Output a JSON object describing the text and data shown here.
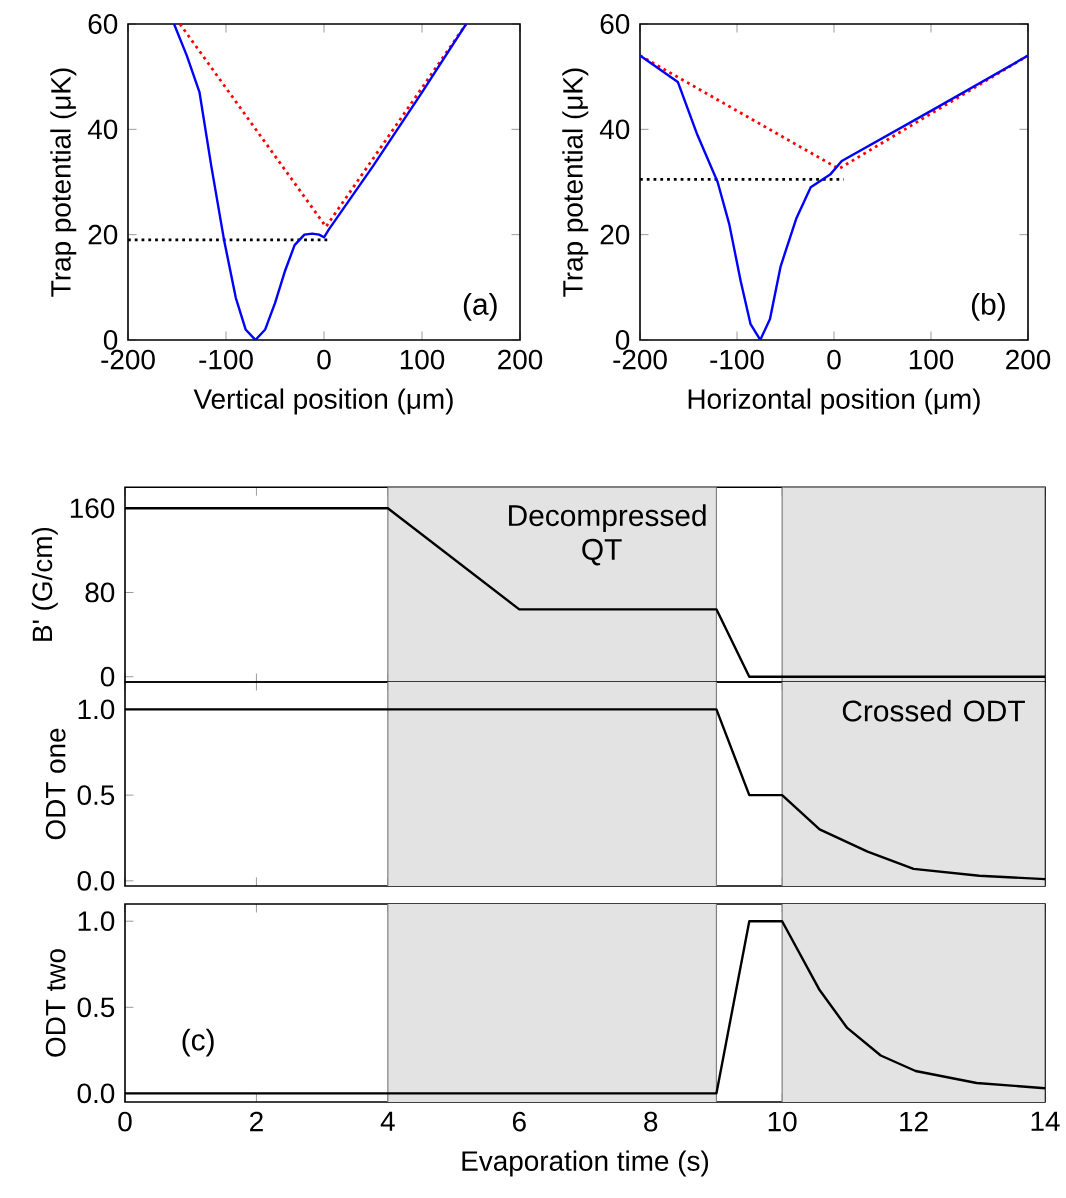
{
  "chart_data": [
    {
      "type": "line",
      "xlabel": "Vertical position (μm)",
      "ylabel": "Trap potential (μK)",
      "xlim": [
        -200,
        200
      ],
      "ylim": [
        0,
        60
      ],
      "xticks": [
        -200,
        -100,
        0,
        100,
        200
      ],
      "yticks": [
        0,
        20,
        40,
        60
      ],
      "annotations": [
        "(a)"
      ],
      "series": [
        {
          "color": "#ff0000",
          "line_style": "dotted",
          "x": [
            -147,
            2,
            145
          ],
          "values": [
            60,
            21.5,
            60
          ]
        },
        {
          "color": "#000000",
          "line_style": "dotted",
          "x": [
            -200,
            5
          ],
          "values": [
            19,
            19
          ]
        },
        {
          "color": "#0000ff",
          "line_style": "solid",
          "x": [
            -153,
            -140,
            -127,
            -115,
            -102,
            -90,
            -80,
            -70,
            -60,
            -50,
            -40,
            -30,
            -20,
            -12,
            -5,
            0,
            5,
            50,
            100,
            145
          ],
          "values": [
            60,
            54,
            47,
            33,
            19,
            8,
            2,
            0,
            2,
            7,
            13,
            18,
            20,
            20.2,
            20,
            19.5,
            21,
            33,
            47,
            60
          ]
        }
      ]
    },
    {
      "type": "line",
      "xlabel": "Horizontal position (μm)",
      "ylabel": "Trap potential (μK)",
      "xlim": [
        -200,
        200
      ],
      "ylim": [
        0,
        60
      ],
      "xticks": [
        -200,
        -100,
        0,
        100,
        200
      ],
      "yticks": [
        0,
        20,
        40,
        60
      ],
      "annotations": [
        "(b)"
      ],
      "series": [
        {
          "color": "#ff0000",
          "line_style": "dotted",
          "x": [
            -200,
            5,
            200
          ],
          "values": [
            54,
            32.5,
            54
          ]
        },
        {
          "color": "#000000",
          "line_style": "dotted",
          "x": [
            -200,
            10
          ],
          "values": [
            30.5,
            30.5
          ]
        },
        {
          "color": "#0000ff",
          "line_style": "solid",
          "x": [
            -200,
            -161,
            -141,
            -120,
            -108,
            -96,
            -86,
            -76,
            -66,
            -55,
            -39,
            -24,
            -4,
            8,
            100,
            200
          ],
          "values": [
            54,
            49,
            39,
            30,
            22,
            11,
            3,
            0,
            4,
            14,
            23,
            29,
            31.4,
            34,
            43.5,
            54
          ]
        }
      ]
    },
    {
      "type": "line",
      "ylabel": "B' (G/cm)",
      "xlim": [
        0,
        14
      ],
      "ylim": [
        -5,
        180
      ],
      "xticks": [
        0,
        2,
        4,
        6,
        8,
        10,
        12,
        14
      ],
      "yticks": [
        0,
        80,
        160
      ],
      "tick_labels": "y",
      "bands": [
        {
          "axis": "x",
          "from": 4,
          "to": 9,
          "label": "Decompressed QT",
          "color": "#e3e3e3"
        },
        {
          "axis": "x",
          "from": 10,
          "to": 14,
          "color": "#e3e3e3"
        }
      ],
      "series": [
        {
          "color": "#000000",
          "line_style": "solid",
          "x": [
            0,
            4,
            6,
            9,
            9.5,
            14
          ],
          "values": [
            160,
            160,
            64,
            64,
            0,
            0
          ]
        }
      ]
    },
    {
      "type": "line",
      "ylabel": "ODT one",
      "xlim": [
        0,
        14
      ],
      "ylim": [
        -0.03,
        1.16
      ],
      "xticks": [
        0,
        2,
        4,
        6,
        8,
        10,
        12,
        14
      ],
      "yticks": [
        {
          "value": 0,
          "label": "0.0"
        },
        {
          "value": 0.5,
          "label": "0.5"
        },
        {
          "value": 1,
          "label": "1.0"
        }
      ],
      "tick_labels": "y",
      "bands": [
        {
          "axis": "x",
          "from": 4,
          "to": 9,
          "color": "#e3e3e3"
        },
        {
          "axis": "x",
          "from": 10,
          "to": 14,
          "label": "Crossed ODT",
          "color": "#e3e3e3"
        }
      ],
      "series": [
        {
          "color": "#000000",
          "line_style": "solid",
          "x": [
            0,
            9,
            9.5,
            10,
            10.57,
            11.3,
            12,
            13,
            14
          ],
          "values": [
            1,
            1,
            0.5,
            0.5,
            0.3,
            0.17,
            0.07,
            0.03,
            0.01
          ]
        }
      ]
    },
    {
      "type": "line",
      "xlabel": "Evaporation time (s)",
      "ylabel": "ODT two",
      "xlim": [
        0,
        14
      ],
      "ylim": [
        -0.05,
        1.1
      ],
      "xticks": [
        0,
        2,
        4,
        6,
        8,
        10,
        12,
        14
      ],
      "yticks": [
        {
          "value": 0,
          "label": "0.0"
        },
        {
          "value": 0.5,
          "label": "0.5"
        },
        {
          "value": 1,
          "label": "1.0"
        }
      ],
      "annotations": [
        "(c)"
      ],
      "bands": [
        {
          "axis": "x",
          "from": 4,
          "to": 9,
          "color": "#e3e3e3"
        },
        {
          "axis": "x",
          "from": 10,
          "to": 14,
          "color": "#e3e3e3"
        }
      ],
      "series": [
        {
          "color": "#000000",
          "line_style": "solid",
          "x": [
            0,
            9,
            9.5,
            10,
            10.57,
            10.99,
            11.5,
            12.03,
            12.96,
            14
          ],
          "values": [
            0,
            0,
            1,
            1,
            0.6,
            0.38,
            0.22,
            0.13,
            0.06,
            0.03
          ]
        }
      ]
    }
  ]
}
